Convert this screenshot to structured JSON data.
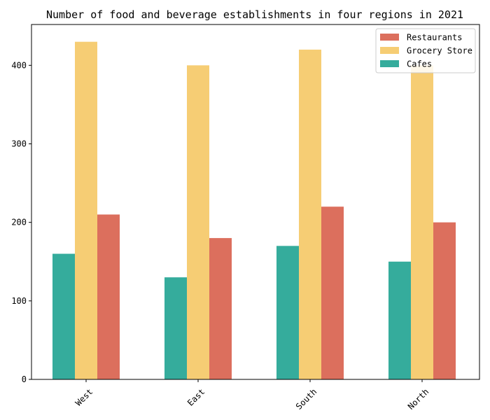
{
  "chart_data": {
    "type": "bar",
    "title": "Number of food and beverage establishments in four regions in 2021",
    "xlabel": "",
    "ylabel": "",
    "categories": [
      "West",
      "East",
      "South",
      "North"
    ],
    "series": [
      {
        "name": "Cafes",
        "values": [
          160,
          130,
          170,
          150
        ],
        "color": "#35ac9c"
      },
      {
        "name": "Grocery Store",
        "values": [
          430,
          400,
          420,
          400
        ],
        "color": "#f6cd74"
      },
      {
        "name": "Restaurants",
        "values": [
          210,
          180,
          220,
          200
        ],
        "color": "#dc6f5d"
      }
    ],
    "legend_order": [
      "Restaurants",
      "Grocery Store",
      "Cafes"
    ],
    "ylim": [
      0,
      452
    ],
    "yticks": [
      0,
      100,
      200,
      300,
      400
    ],
    "grid": false,
    "legend_position": "top-right",
    "xtick_rotation": 45
  }
}
